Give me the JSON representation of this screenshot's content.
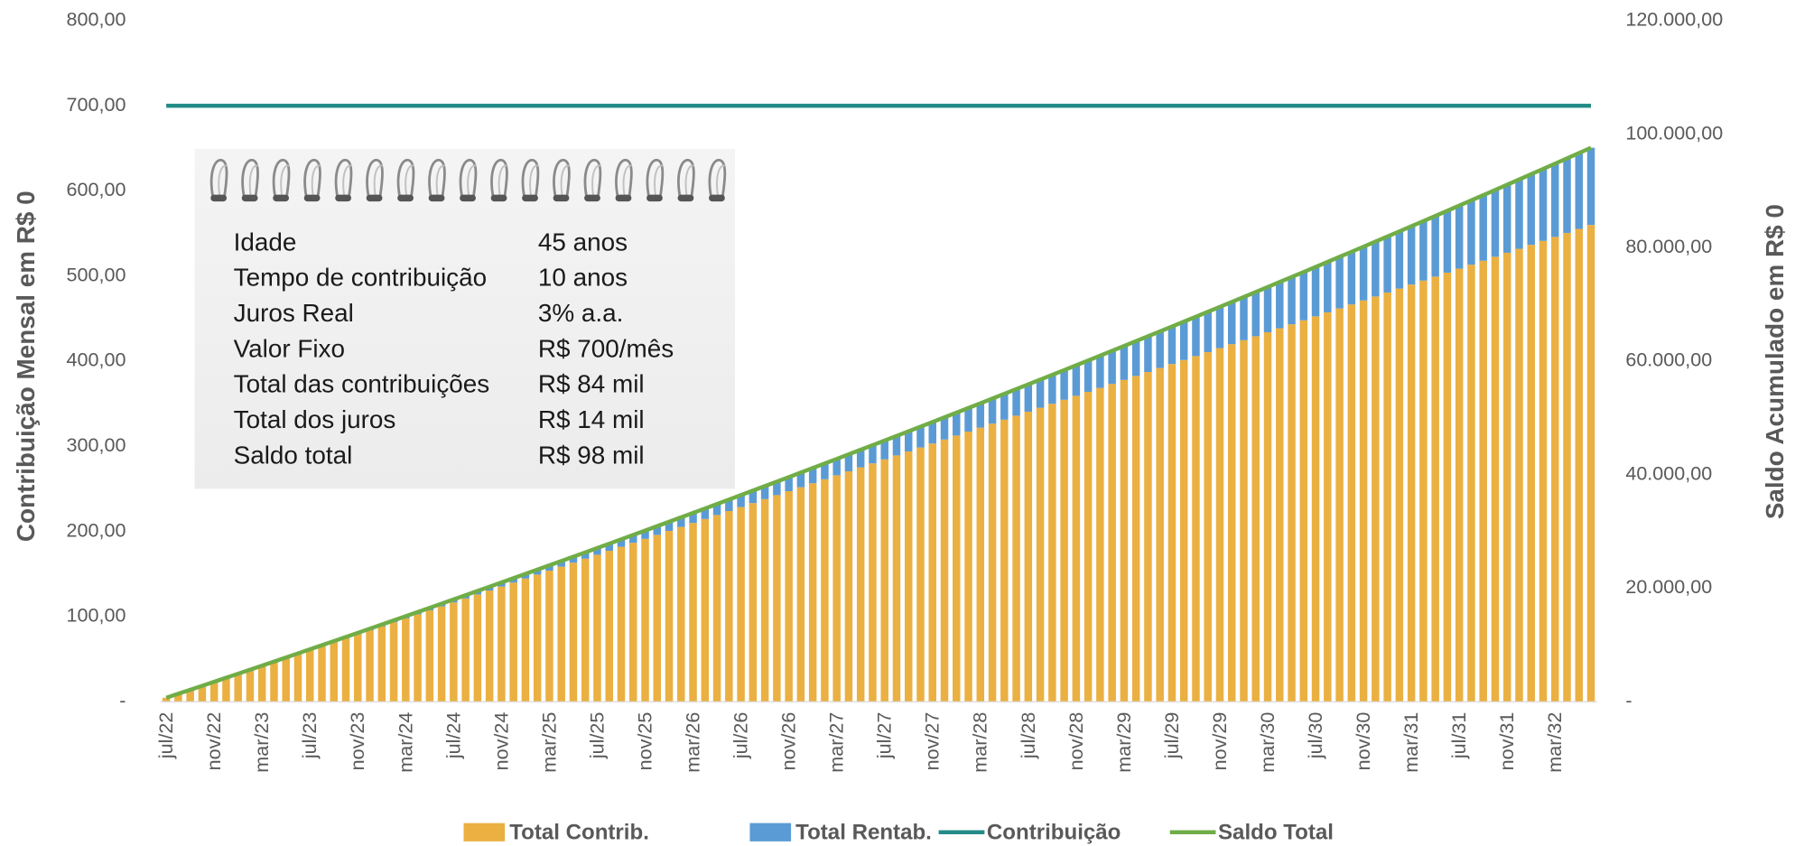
{
  "chart_data": {
    "type": "bar",
    "stacked": true,
    "y_label": "Contribuição Mensal em R$ 0",
    "y2_label": "Saldo Acumulado em R$ 0",
    "ylim": [
      0,
      800
    ],
    "yticks": [
      {
        "value": 0,
        "label": "-"
      },
      {
        "value": 100,
        "label": "100,00"
      },
      {
        "value": 200,
        "label": "200,00"
      },
      {
        "value": 300,
        "label": "300,00"
      },
      {
        "value": 400,
        "label": "400,00"
      },
      {
        "value": 500,
        "label": "500,00"
      },
      {
        "value": 600,
        "label": "600,00"
      },
      {
        "value": 700,
        "label": "700,00"
      },
      {
        "value": 800,
        "label": "800,00"
      }
    ],
    "y2lim": [
      0,
      120000
    ],
    "y2ticks": [
      {
        "value": 0,
        "label": "-"
      },
      {
        "value": 20000,
        "label": "20.000,00"
      },
      {
        "value": 40000,
        "label": "40.000,00"
      },
      {
        "value": 60000,
        "label": "60.000,00"
      },
      {
        "value": 80000,
        "label": "80.000,00"
      },
      {
        "value": 100000,
        "label": "100.000,00"
      },
      {
        "value": 120000,
        "label": "120.000,00"
      }
    ],
    "legend": "bottom",
    "categories": [
      "jul/22",
      null,
      null,
      null,
      "nov/22",
      null,
      null,
      null,
      "mar/23",
      null,
      null,
      null,
      "jul/23",
      null,
      null,
      null,
      "nov/23",
      null,
      null,
      null,
      "mar/24",
      null,
      null,
      null,
      "jul/24",
      null,
      null,
      null,
      "nov/24",
      null,
      null,
      null,
      "mar/25",
      null,
      null,
      null,
      "jul/25",
      null,
      null,
      null,
      "nov/25",
      null,
      null,
      null,
      "mar/26",
      null,
      null,
      null,
      "jul/26",
      null,
      null,
      null,
      "nov/26",
      null,
      null,
      null,
      "mar/27",
      null,
      null,
      null,
      "jul/27",
      null,
      null,
      null,
      "nov/27",
      null,
      null,
      null,
      "mar/28",
      null,
      null,
      null,
      "jul/28",
      null,
      null,
      null,
      "nov/28",
      null,
      null,
      null,
      "mar/29",
      null,
      null,
      null,
      "jul/29",
      null,
      null,
      null,
      "nov/29",
      null,
      null,
      null,
      "mar/30",
      null,
      null,
      null,
      "jul/30",
      null,
      null,
      null,
      "nov/30",
      null,
      null,
      null,
      "mar/31",
      null,
      null,
      null,
      "jul/31",
      null,
      null,
      null,
      "nov/31",
      null,
      null,
      null,
      "mar/32",
      null,
      null,
      null
    ],
    "series": [
      {
        "name": "Total Contrib.",
        "type": "bar",
        "axis": "y2",
        "color": "#EBB042",
        "values": [
          700,
          1400,
          2100,
          2800,
          3500,
          4200,
          4900,
          5600,
          6300,
          7000,
          7700,
          8400,
          9100,
          9800,
          10500,
          11200,
          11900,
          12600,
          13300,
          14000,
          14700,
          15400,
          16100,
          16800,
          17500,
          18200,
          18900,
          19600,
          20300,
          21000,
          21700,
          22400,
          23100,
          23800,
          24500,
          25200,
          25900,
          26600,
          27300,
          28000,
          28700,
          29400,
          30100,
          30800,
          31500,
          32200,
          32900,
          33600,
          34300,
          35000,
          35700,
          36400,
          37100,
          37800,
          38500,
          39200,
          39900,
          40600,
          41300,
          42000,
          42700,
          43400,
          44100,
          44800,
          45500,
          46200,
          46900,
          47600,
          48300,
          49000,
          49700,
          50400,
          51100,
          51800,
          52500,
          53200,
          53900,
          54600,
          55300,
          56000,
          56700,
          57400,
          58100,
          58800,
          59500,
          60200,
          60900,
          61600,
          62300,
          63000,
          63700,
          64400,
          65100,
          65800,
          66500,
          67200,
          67900,
          68600,
          69300,
          70000,
          70700,
          71400,
          72100,
          72800,
          73500,
          74200,
          74900,
          75600,
          76300,
          77000,
          77700,
          78400,
          79100,
          79800,
          80500,
          81200,
          81900,
          82600,
          83300,
          84000
        ]
      },
      {
        "name": "Total Rentab.",
        "type": "bar",
        "axis": "y2",
        "color": "#5B9BD5",
        "values": [
          0,
          2,
          5,
          10,
          17,
          26,
          36,
          49,
          63,
          78,
          96,
          115,
          136,
          159,
          183,
          210,
          238,
          268,
          299,
          333,
          368,
          405,
          444,
          485,
          528,
          572,
          618,
          666,
          716,
          768,
          822,
          877,
          935,
          994,
          1055,
          1118,
          1183,
          1249,
          1318,
          1389,
          1461,
          1535,
          1611,
          1689,
          1769,
          1851,
          1935,
          2021,
          2110,
          2200,
          2292,
          2386,
          2481,
          2579,
          2678,
          2780,
          2884,
          2989,
          3097,
          3206,
          3317,
          3431,
          3546,
          3664,
          3784,
          3905,
          4029,
          4154,
          4282,
          4411,
          4543,
          4676,
          4812,
          4951,
          5090,
          5232,
          5377,
          5522,
          5670,
          5821,
          5973,
          6128,
          6285,
          6443,
          6604,
          6767,
          6932,
          7099,
          7269,
          7441,
          7614,
          7790,
          7969,
          8148,
          8331,
          8515,
          8702,
          8891,
          9082,
          9276,
          9470,
          9668,
          9868,
          10070,
          10275,
          10481,
          10690,
          10901,
          11113,
          11330,
          11547,
          11767,
          11990,
          12214,
          12441,
          12671,
          12902,
          13135,
          13371,
          13609
        ]
      },
      {
        "name": "Contribuição",
        "type": "line",
        "axis": "y",
        "color": "#238B87",
        "values": [
          700,
          700,
          700,
          700,
          700,
          700,
          700,
          700,
          700,
          700,
          700,
          700,
          700,
          700,
          700,
          700,
          700,
          700,
          700,
          700,
          700,
          700,
          700,
          700,
          700,
          700,
          700,
          700,
          700,
          700,
          700,
          700,
          700,
          700,
          700,
          700,
          700,
          700,
          700,
          700,
          700,
          700,
          700,
          700,
          700,
          700,
          700,
          700,
          700,
          700,
          700,
          700,
          700,
          700,
          700,
          700,
          700,
          700,
          700,
          700,
          700,
          700,
          700,
          700,
          700,
          700,
          700,
          700,
          700,
          700,
          700,
          700,
          700,
          700,
          700,
          700,
          700,
          700,
          700,
          700,
          700,
          700,
          700,
          700,
          700,
          700,
          700,
          700,
          700,
          700,
          700,
          700,
          700,
          700,
          700,
          700,
          700,
          700,
          700,
          700,
          700,
          700,
          700,
          700,
          700,
          700,
          700,
          700,
          700,
          700,
          700,
          700,
          700,
          700,
          700,
          700,
          700,
          700,
          700,
          700
        ]
      },
      {
        "name": "Saldo Total",
        "type": "line",
        "axis": "y2",
        "color": "#70AD47",
        "values": [
          700,
          1402,
          2105,
          2810,
          3517,
          4226,
          4936,
          5649,
          6363,
          7078,
          7796,
          8515,
          9236,
          9959,
          10683,
          11410,
          12138,
          12868,
          13599,
          14333,
          15068,
          15805,
          16544,
          17285,
          18028,
          18772,
          19518,
          20266,
          21016,
          21768,
          22522,
          23277,
          24035,
          24794,
          25555,
          26318,
          27083,
          27849,
          28618,
          29389,
          30161,
          30935,
          31711,
          32489,
          33269,
          34051,
          34835,
          35621,
          36410,
          37200,
          37992,
          38786,
          39581,
          40379,
          41178,
          41980,
          42784,
          43589,
          44397,
          45206,
          46017,
          46831,
          47646,
          48464,
          49284,
          50105,
          50929,
          51754,
          52582,
          53411,
          54243,
          55076,
          55912,
          56751,
          57590,
          58432,
          59277,
          60122,
          60970,
          61821,
          62673,
          63528,
          64385,
          65243,
          66104,
          66967,
          67832,
          68699,
          69569,
          70441,
          71314,
          72190,
          73069,
          73948,
          74831,
          75715,
          76602,
          77491,
          78382,
          79276,
          80170,
          81068,
          81968,
          82870,
          83775,
          84681,
          85590,
          86501,
          87413,
          88330,
          89247,
          90167,
          91090,
          92014,
          92941,
          93871,
          94802,
          95735,
          96671,
          97609
        ]
      }
    ],
    "info": [
      [
        "Idade",
        "45 anos"
      ],
      [
        "Tempo de contribuição",
        "10 anos"
      ],
      [
        "Juros Real",
        "3% a.a."
      ],
      [
        "Valor Fixo",
        "R$ 700/mês"
      ],
      [
        "Total das contribuições",
        "R$ 84 mil"
      ],
      [
        "Total dos juros",
        "R$ 14 mil"
      ],
      [
        "Saldo total",
        "R$ 98 mil"
      ]
    ]
  }
}
